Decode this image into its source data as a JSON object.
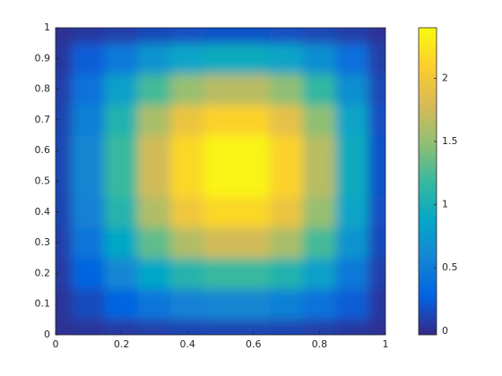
{
  "chart_data": {
    "type": "heatmap",
    "x": [
      0,
      0.1,
      0.2,
      0.3,
      0.4,
      0.5,
      0.6,
      0.7,
      0.8,
      0.9,
      1
    ],
    "y": [
      0,
      0.1,
      0.2,
      0.3,
      0.4,
      0.5,
      0.6,
      0.7,
      0.8,
      0.9,
      1
    ],
    "z": [
      [
        0.01,
        0.03,
        0.06,
        0.09,
        0.11,
        0.12,
        0.12,
        0.11,
        0.08,
        0.05,
        0.01
      ],
      [
        0.03,
        0.15,
        0.29,
        0.44,
        0.54,
        0.59,
        0.59,
        0.53,
        0.41,
        0.24,
        0.05
      ],
      [
        0.06,
        0.29,
        0.59,
        0.88,
        1.08,
        1.18,
        1.18,
        1.06,
        0.82,
        0.47,
        0.09
      ],
      [
        0.09,
        0.44,
        0.88,
        1.32,
        1.62,
        1.76,
        1.76,
        1.59,
        1.23,
        0.71,
        0.14
      ],
      [
        0.11,
        0.54,
        1.08,
        1.62,
        1.99,
        2.16,
        2.16,
        1.95,
        1.51,
        0.86,
        0.17
      ],
      [
        0.12,
        0.59,
        1.18,
        1.76,
        2.16,
        2.35,
        2.35,
        2.12,
        1.65,
        0.94,
        0.19
      ],
      [
        0.12,
        0.59,
        1.18,
        1.76,
        2.16,
        2.35,
        2.35,
        2.12,
        1.65,
        0.94,
        0.19
      ],
      [
        0.11,
        0.53,
        1.06,
        1.59,
        1.95,
        2.12,
        2.12,
        1.9,
        1.48,
        0.85,
        0.17
      ],
      [
        0.08,
        0.41,
        0.82,
        1.23,
        1.51,
        1.65,
        1.65,
        1.48,
        1.15,
        0.66,
        0.13
      ],
      [
        0.05,
        0.24,
        0.47,
        0.71,
        0.86,
        0.94,
        0.94,
        0.85,
        0.66,
        0.38,
        0.08
      ],
      [
        0.01,
        0.05,
        0.09,
        0.14,
        0.17,
        0.19,
        0.19,
        0.17,
        0.13,
        0.08,
        0.02
      ]
    ],
    "xlim": [
      0,
      1
    ],
    "ylim": [
      0,
      1
    ],
    "xticks": [
      0,
      0.2,
      0.4,
      0.6,
      0.8,
      1
    ],
    "yticks": [
      0,
      0.1,
      0.2,
      0.3,
      0.4,
      0.5,
      0.6,
      0.7,
      0.8,
      0.9,
      1
    ],
    "clim": [
      -0.03,
      2.4
    ],
    "cticks": [
      0,
      0.5,
      1,
      1.5,
      2
    ],
    "colormap": "parula"
  }
}
